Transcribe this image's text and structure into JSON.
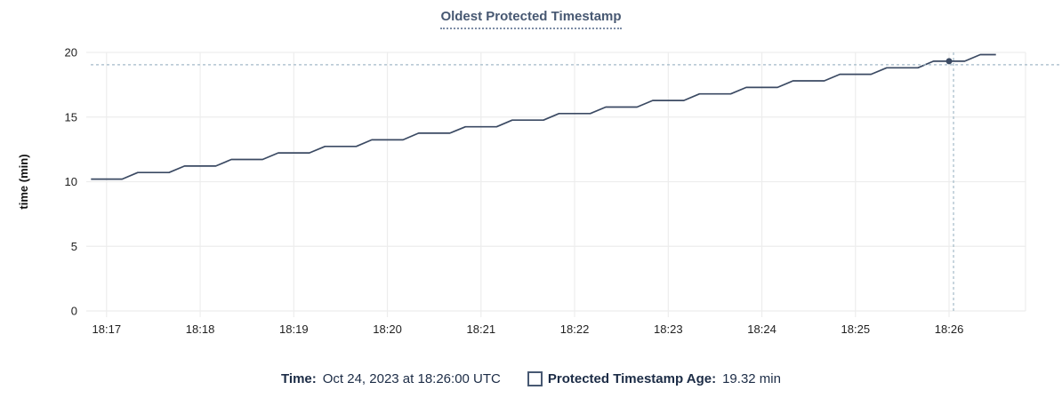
{
  "colors": {
    "title": "#475872",
    "line": "#3b4a63",
    "grid": "#ededed",
    "axis_text": "#1f1f1f",
    "crosshair": "#a3bac8",
    "legend_text": "#1c2c46",
    "swatch_border": "#475872",
    "background": "#ffffff"
  },
  "chart_data": {
    "type": "line",
    "title": "Oldest Protected Timestamp",
    "xlabel": "",
    "ylabel": "time (min)",
    "ylim": [
      0,
      20
    ],
    "yticks": [
      0,
      5,
      10,
      15,
      20
    ],
    "xticks": [
      "18:17",
      "18:18",
      "18:19",
      "18:20",
      "18:21",
      "18:22",
      "18:23",
      "18:24",
      "18:25",
      "18:26"
    ],
    "x_domain": [
      "18:16:47",
      "18:26:49"
    ],
    "grid": true,
    "legend_position": "bottom",
    "series": [
      {
        "name": "Protected Timestamp Age",
        "unit": "min",
        "points": [
          [
            "18:16:50",
            10.2
          ],
          [
            "18:17:00",
            10.2
          ],
          [
            "18:17:10",
            10.2
          ],
          [
            "18:17:20",
            10.71
          ],
          [
            "18:17:30",
            10.71
          ],
          [
            "18:17:40",
            10.71
          ],
          [
            "18:17:50",
            11.21
          ],
          [
            "18:18:00",
            11.21
          ],
          [
            "18:18:10",
            11.21
          ],
          [
            "18:18:20",
            11.72
          ],
          [
            "18:18:30",
            11.72
          ],
          [
            "18:18:40",
            11.72
          ],
          [
            "18:18:50",
            12.23
          ],
          [
            "18:19:00",
            12.23
          ],
          [
            "18:19:10",
            12.23
          ],
          [
            "18:19:20",
            12.73
          ],
          [
            "18:19:30",
            12.73
          ],
          [
            "18:19:40",
            12.73
          ],
          [
            "18:19:50",
            13.24
          ],
          [
            "18:20:00",
            13.24
          ],
          [
            "18:20:10",
            13.24
          ],
          [
            "18:20:20",
            13.75
          ],
          [
            "18:20:30",
            13.75
          ],
          [
            "18:20:40",
            13.75
          ],
          [
            "18:20:50",
            14.25
          ],
          [
            "18:21:00",
            14.25
          ],
          [
            "18:21:10",
            14.25
          ],
          [
            "18:21:20",
            14.76
          ],
          [
            "18:21:30",
            14.76
          ],
          [
            "18:21:40",
            14.76
          ],
          [
            "18:21:50",
            15.27
          ],
          [
            "18:22:00",
            15.27
          ],
          [
            "18:22:10",
            15.27
          ],
          [
            "18:22:20",
            15.77
          ],
          [
            "18:22:30",
            15.77
          ],
          [
            "18:22:40",
            15.77
          ],
          [
            "18:22:50",
            16.28
          ],
          [
            "18:23:00",
            16.28
          ],
          [
            "18:23:10",
            16.28
          ],
          [
            "18:23:20",
            16.79
          ],
          [
            "18:23:30",
            16.79
          ],
          [
            "18:23:40",
            16.79
          ],
          [
            "18:23:50",
            17.29
          ],
          [
            "18:24:00",
            17.29
          ],
          [
            "18:24:10",
            17.29
          ],
          [
            "18:24:20",
            17.8
          ],
          [
            "18:24:30",
            17.8
          ],
          [
            "18:24:40",
            17.8
          ],
          [
            "18:24:50",
            18.31
          ],
          [
            "18:25:00",
            18.31
          ],
          [
            "18:25:10",
            18.31
          ],
          [
            "18:25:20",
            18.81
          ],
          [
            "18:25:30",
            18.81
          ],
          [
            "18:25:40",
            18.81
          ],
          [
            "18:25:50",
            19.32
          ],
          [
            "18:26:00",
            19.32
          ],
          [
            "18:26:10",
            19.32
          ],
          [
            "18:26:20",
            19.83
          ],
          [
            "18:26:30",
            19.83
          ]
        ]
      }
    ]
  },
  "hover": {
    "time_label": "Time:",
    "time_value": "Oct 24, 2023 at 18:26:00 UTC",
    "series_label": "Protected Timestamp Age:",
    "value_label": "19.32 min",
    "point": {
      "time": "18:26:00",
      "value": 19.32
    }
  }
}
